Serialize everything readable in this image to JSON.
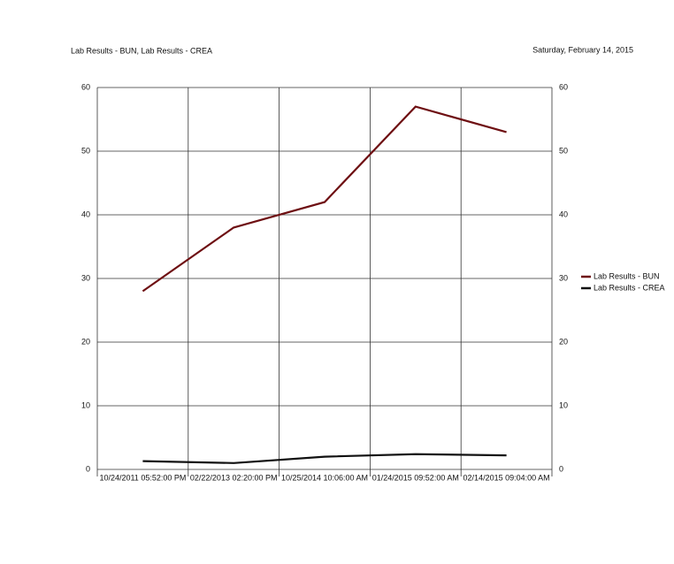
{
  "title": "Lab Results - BUN, Lab Results - CREA",
  "date": "Saturday, February 14, 2015",
  "chart_data": {
    "type": "line",
    "categories": [
      "10/24/2011 05:52:00 PM",
      "02/22/2013 02:20:00 PM",
      "10/25/2014 10:06:00 AM",
      "01/24/2015 09:52:00 AM",
      "02/14/2015 09:04:00 AM"
    ],
    "series": [
      {
        "name": "Lab Results - BUN",
        "color": "#6e0f12",
        "values": [
          28,
          38,
          42,
          57,
          53
        ]
      },
      {
        "name": "Lab Results - CREA",
        "color": "#111111",
        "values": [
          1.3,
          1.0,
          2.0,
          2.4,
          2.2
        ]
      }
    ],
    "ylim": [
      0,
      60
    ],
    "yticks": [
      0,
      10,
      20,
      30,
      40,
      50,
      60
    ],
    "y2lim": [
      0,
      60
    ],
    "y2ticks": [
      0,
      10,
      20,
      30,
      40,
      50,
      60
    ],
    "grid": true,
    "legend": "right"
  }
}
